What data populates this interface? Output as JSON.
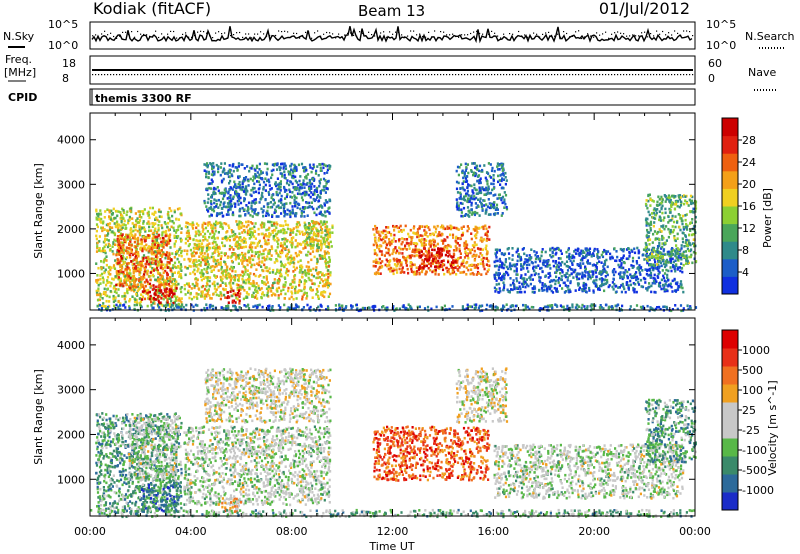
{
  "header": {
    "station": "Kodiak (fitACF)",
    "beam": "Beam 13",
    "date": "01/Jul/2012"
  },
  "strips": {
    "nsky_label": "N.Sky",
    "nsearch_label": "N.Search",
    "freq_label_line1": "Freq.",
    "freq_label_line2": "[MHz]",
    "nave_label": "Nave",
    "cpid_label": "CPID",
    "cpid_value": "themis 3300 RF",
    "noise_ticks": [
      "10^5",
      "10^0"
    ],
    "freq_ticks": [
      "18",
      "8"
    ],
    "nave_ticks": [
      "60",
      "0"
    ]
  },
  "chart_data": [
    {
      "type": "heatmap",
      "name": "power",
      "title": "",
      "xlabel": "Time UT",
      "ylabel": "Slant Range [km]",
      "x_ticks": [
        "00:00",
        "04:00",
        "08:00",
        "12:00",
        "16:00",
        "20:00",
        "00:00"
      ],
      "y_ticks": [
        1000,
        2000,
        3000,
        4000
      ],
      "xlim_hours": [
        0,
        24
      ],
      "ylim_km": [
        180,
        4600
      ],
      "colorbar": {
        "label": "Power [dB]",
        "ticks": [
          "4",
          "8",
          "12",
          "16",
          "20",
          "24",
          "28"
        ],
        "colors": [
          "#1030e0",
          "#1c5ec8",
          "#2f8a8a",
          "#4aa65a",
          "#8ccf33",
          "#f0d020",
          "#f4a018",
          "#ee6010",
          "#e02010",
          "#cc0000"
        ]
      },
      "regions": [
        {
          "t0": 0.2,
          "t1": 3.6,
          "r0": 280,
          "r1": 2500,
          "level": 0.5
        },
        {
          "t0": 1.0,
          "t1": 3.2,
          "r0": 700,
          "r1": 1900,
          "level": 0.75
        },
        {
          "t0": 2.0,
          "t1": 3.4,
          "r0": 350,
          "r1": 700,
          "level": 0.9
        },
        {
          "t0": 4.5,
          "t1": 9.5,
          "r0": 2300,
          "r1": 3500,
          "level": 0.2
        },
        {
          "t0": 3.7,
          "t1": 9.5,
          "r0": 450,
          "r1": 2200,
          "level": 0.55
        },
        {
          "t0": 5.4,
          "t1": 5.9,
          "r0": 350,
          "r1": 650,
          "level": 0.95
        },
        {
          "t0": 8.5,
          "t1": 9.6,
          "r0": 1600,
          "r1": 2200,
          "level": 0.5
        },
        {
          "t0": 11.2,
          "t1": 15.8,
          "r0": 1000,
          "r1": 2100,
          "level": 0.7
        },
        {
          "t0": 13.0,
          "t1": 14.5,
          "r0": 1100,
          "r1": 1600,
          "level": 0.9
        },
        {
          "t0": 14.5,
          "t1": 16.5,
          "r0": 2300,
          "r1": 3500,
          "level": 0.2
        },
        {
          "t0": 16.0,
          "t1": 23.5,
          "r0": 600,
          "r1": 1600,
          "level": 0.15
        },
        {
          "t0": 22.0,
          "t1": 24.0,
          "r0": 1200,
          "r1": 2800,
          "level": 0.35
        },
        {
          "t0": 0.0,
          "t1": 24.0,
          "r0": 190,
          "r1": 330,
          "level": 0.2
        }
      ]
    },
    {
      "type": "heatmap",
      "name": "velocity",
      "title": "",
      "xlabel": "Time UT",
      "ylabel": "Slant Range [km]",
      "x_ticks": [
        "00:00",
        "04:00",
        "08:00",
        "12:00",
        "16:00",
        "20:00",
        "00:00"
      ],
      "y_ticks": [
        1000,
        2000,
        3000,
        4000
      ],
      "xlim_hours": [
        0,
        24
      ],
      "ylim_km": [
        180,
        4600
      ],
      "colorbar": {
        "label": "Velocity [m s^-1]",
        "ticks": [
          "1000",
          "500",
          "100",
          "25",
          "-25",
          "-100",
          "-500",
          "-1000"
        ],
        "colors": [
          "#1a2cc8",
          "#2c6a9a",
          "#3a8a6a",
          "#58b848",
          "#c8c8c8",
          "#c8c8c8",
          "#f0a020",
          "#f07020",
          "#e83018",
          "#dd0000"
        ]
      },
      "regions": [
        {
          "t0": 0.2,
          "t1": 3.6,
          "r0": 280,
          "r1": 2500,
          "level": 0.3
        },
        {
          "t0": 1.5,
          "t1": 3.4,
          "r0": 1000,
          "r1": 2400,
          "level": 0.45
        },
        {
          "t0": 2.0,
          "t1": 3.6,
          "r0": 300,
          "r1": 900,
          "level": 0.2
        },
        {
          "t0": 3.7,
          "t1": 9.5,
          "r0": 450,
          "r1": 2200,
          "level": 0.45
        },
        {
          "t0": 4.5,
          "t1": 9.5,
          "r0": 2300,
          "r1": 3500,
          "level": 0.5
        },
        {
          "t0": 5.2,
          "t1": 6.0,
          "r0": 300,
          "r1": 650,
          "level": 0.65
        },
        {
          "t0": 11.2,
          "t1": 15.8,
          "r0": 1000,
          "r1": 2200,
          "level": 0.8
        },
        {
          "t0": 14.5,
          "t1": 16.5,
          "r0": 2300,
          "r1": 3500,
          "level": 0.5
        },
        {
          "t0": 16.0,
          "t1": 23.5,
          "r0": 600,
          "r1": 1800,
          "level": 0.45
        },
        {
          "t0": 22.0,
          "t1": 24.0,
          "r0": 1400,
          "r1": 2800,
          "level": 0.28
        },
        {
          "t0": 0.0,
          "t1": 24.0,
          "r0": 190,
          "r1": 340,
          "level": 0.35
        }
      ]
    }
  ]
}
